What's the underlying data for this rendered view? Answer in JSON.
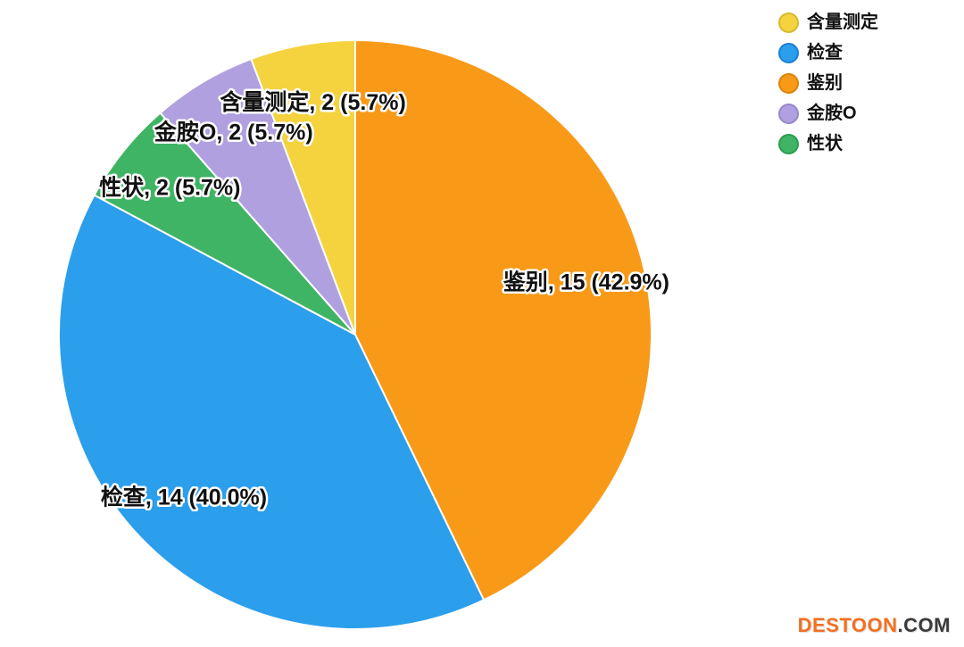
{
  "chart_data": {
    "type": "pie",
    "start_angle_deg": 0,
    "direction": "clockwise",
    "total": 35,
    "slice_label_format": "{label}, {value} ({pct}%)",
    "slices": [
      {
        "label": "鉴别",
        "value": 15,
        "pct": "42.9",
        "color": "#F89A18"
      },
      {
        "label": "检查",
        "value": 14,
        "pct": "40.0",
        "color": "#2B9EEC"
      },
      {
        "label": "性状",
        "value": 2,
        "pct": "5.7",
        "color": "#40B465"
      },
      {
        "label": "金胺O",
        "value": 2,
        "pct": "5.7",
        "color": "#B0A0E0"
      },
      {
        "label": "含量测定",
        "value": 2,
        "pct": "5.7",
        "color": "#F4D33F"
      }
    ],
    "legend_position": "top-right"
  },
  "legend": {
    "items": [
      {
        "label": "含量测定",
        "color": "#F4D33F",
        "border": "#D8B92E"
      },
      {
        "label": "检查",
        "color": "#2B9EEC",
        "border": "#1C7FD6"
      },
      {
        "label": "鉴别",
        "color": "#F89A18",
        "border": "#DC830E"
      },
      {
        "label": "金胺O",
        "color": "#B0A0E0",
        "border": "#9787CC"
      },
      {
        "label": "性状",
        "color": "#40B465",
        "border": "#2E9C50"
      }
    ]
  },
  "watermark": {
    "brand": "DESTOON",
    "suffix": ".COM",
    "brand_color": "#F36F21",
    "suffix_color": "#3A3A3A"
  }
}
